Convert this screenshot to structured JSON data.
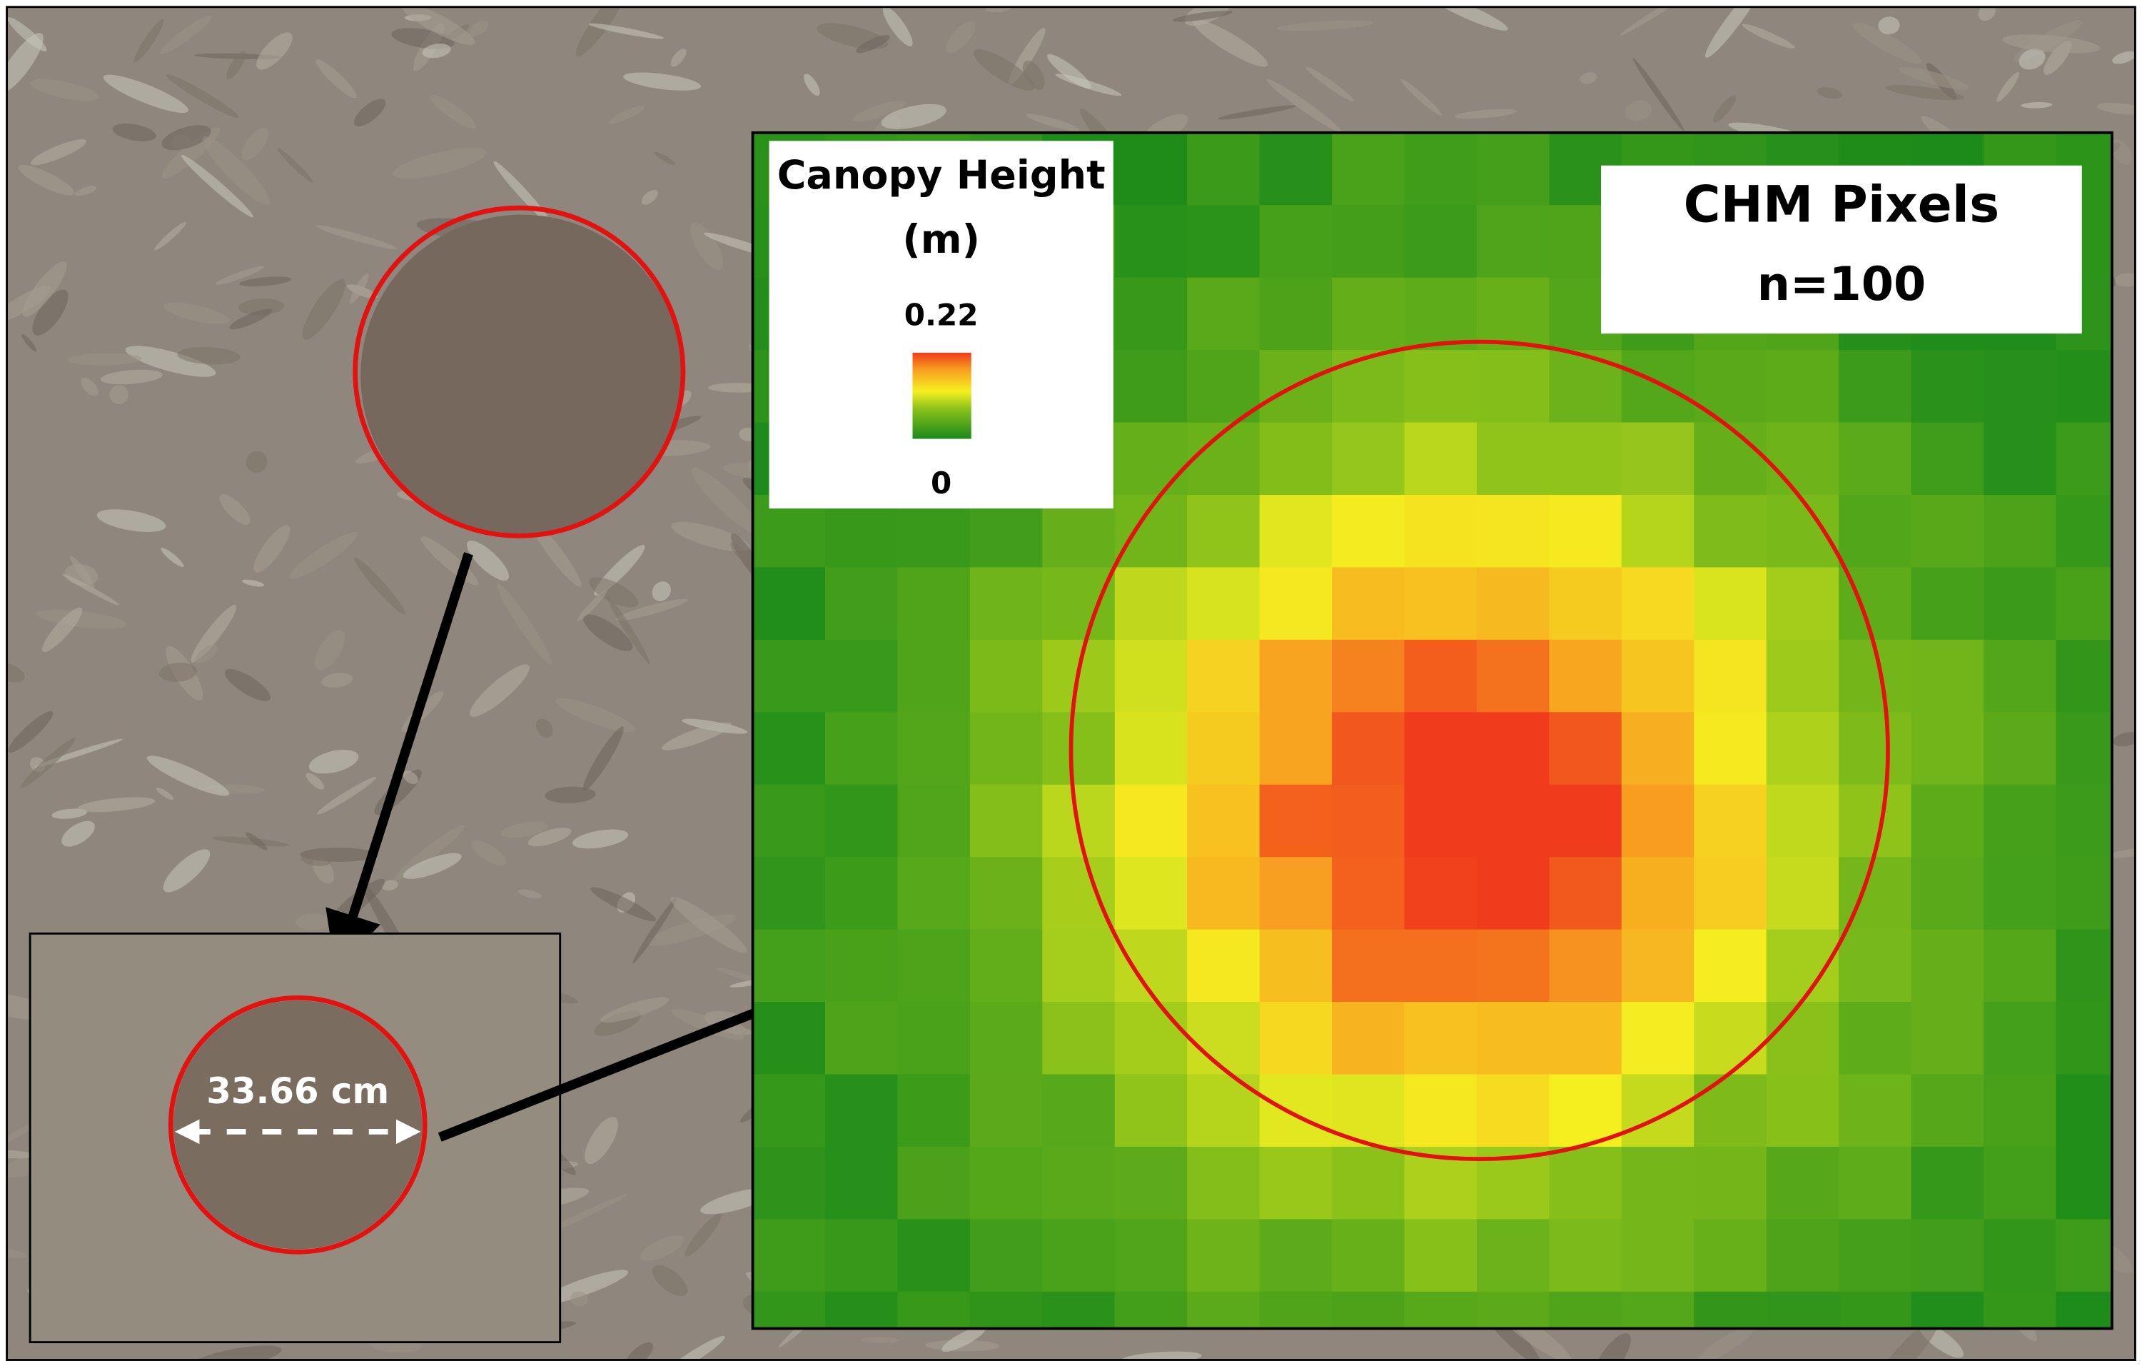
{
  "legend": {
    "title_line1": "Canopy Height",
    "title_line2": "(m)",
    "max_label": "0.22",
    "min_label": "0"
  },
  "info_box": {
    "title": "CHM Pixels",
    "count": "n=100"
  },
  "measurement": {
    "label": "33.66 cm"
  }
}
